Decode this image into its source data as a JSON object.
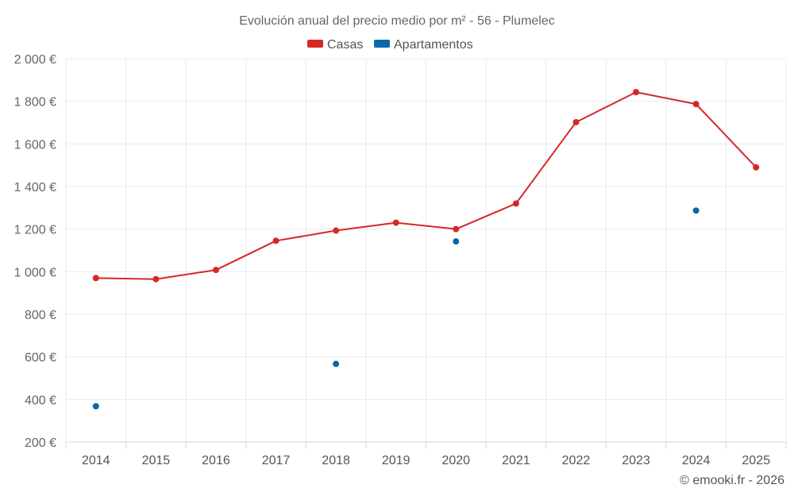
{
  "chart_data": {
    "type": "line",
    "title": "Evolución anual del precio medio por m² - 56 - Plumelec",
    "categories": [
      "2014",
      "2015",
      "2016",
      "2017",
      "2018",
      "2019",
      "2020",
      "2021",
      "2022",
      "2023",
      "2024",
      "2025"
    ],
    "y_ticks": [
      200,
      400,
      600,
      800,
      1000,
      1200,
      1400,
      1600,
      1800,
      2000
    ],
    "y_tick_labels": [
      "200 €",
      "400 €",
      "600 €",
      "800 €",
      "1 000 €",
      "1 200 €",
      "1 400 €",
      "1 600 €",
      "1 800 €",
      "2 000 €"
    ],
    "ylim": [
      200,
      2000
    ],
    "grid": true,
    "legend_position": "top-center",
    "series": [
      {
        "name": "Casas",
        "color": "#d62728",
        "style": "line-markers",
        "values": [
          970,
          965,
          1008,
          1145,
          1193,
          1230,
          1200,
          1320,
          1702,
          1843,
          1787,
          1490
        ]
      },
      {
        "name": "Apartamentos",
        "color": "#0868a8",
        "style": "markers",
        "values": [
          368,
          null,
          null,
          null,
          567,
          null,
          1142,
          null,
          null,
          null,
          1287,
          null
        ]
      }
    ]
  },
  "credit": "© emooki.fr - 2026"
}
